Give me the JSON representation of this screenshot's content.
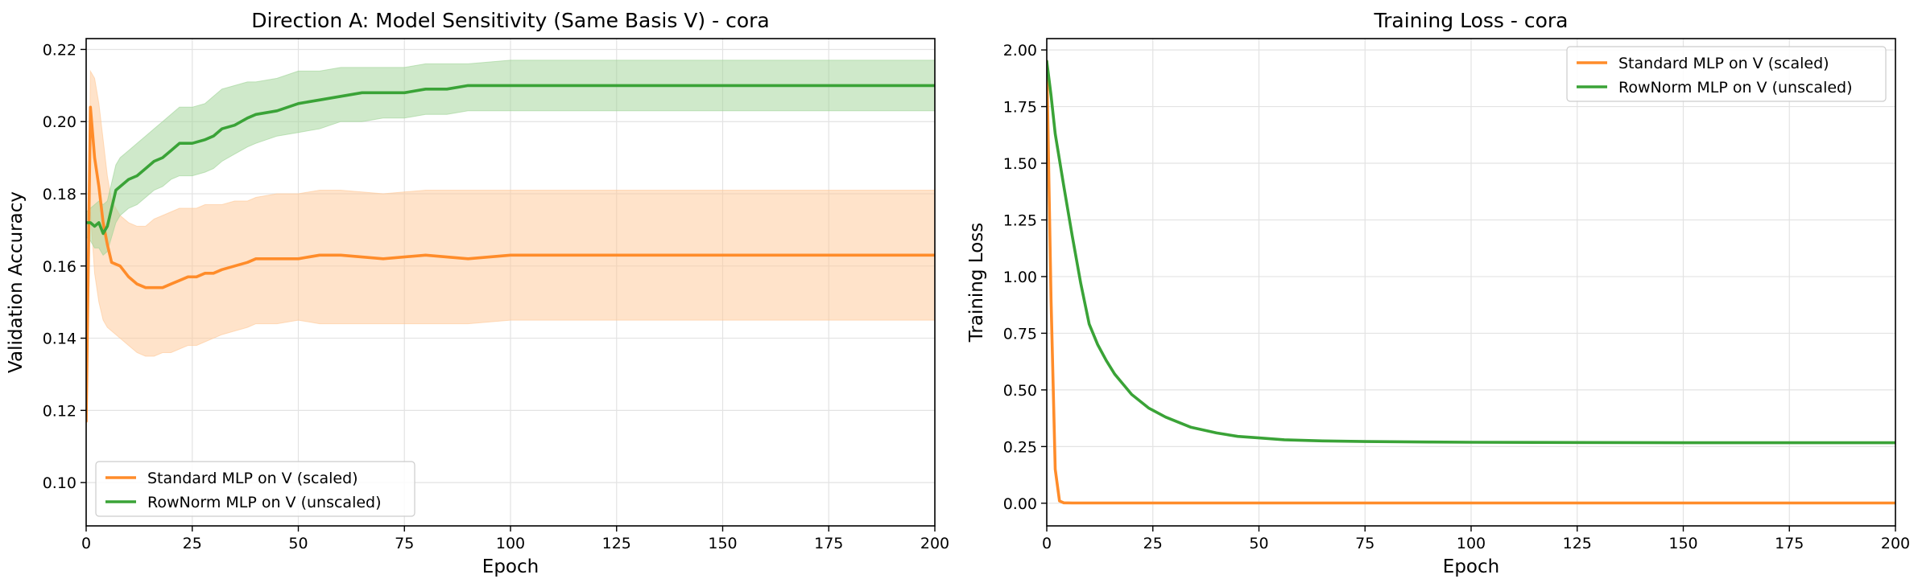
{
  "colors": {
    "standard": "#ff8c2a",
    "rownorm": "#3aa337",
    "standard_band": "#ffc896",
    "rownorm_band": "#9fd496"
  },
  "chart_data": [
    {
      "type": "line",
      "title": "Direction A: Model Sensitivity (Same Basis V) - cora",
      "xlabel": "Epoch",
      "ylabel": "Validation Accuracy",
      "xlim": [
        0,
        200
      ],
      "ylim": [
        0.088,
        0.223
      ],
      "xticks": [
        0,
        25,
        50,
        75,
        100,
        125,
        150,
        175,
        200
      ],
      "yticks": [
        0.1,
        0.12,
        0.14,
        0.16,
        0.18,
        0.2,
        0.22
      ],
      "ytick_labels": [
        "0.10",
        "0.12",
        "0.14",
        "0.16",
        "0.18",
        "0.20",
        "0.22"
      ],
      "grid": true,
      "legend_position": "lower-left",
      "series": [
        {
          "name": "Standard MLP on V (scaled)",
          "color_key": "standard",
          "x": [
            0,
            1,
            2,
            3,
            4,
            5,
            6,
            8,
            10,
            12,
            14,
            16,
            18,
            20,
            22,
            24,
            26,
            28,
            30,
            32,
            35,
            38,
            40,
            45,
            50,
            55,
            60,
            70,
            80,
            90,
            100,
            110,
            120,
            140,
            160,
            180,
            200
          ],
          "y": [
            0.117,
            0.204,
            0.19,
            0.182,
            0.172,
            0.166,
            0.161,
            0.16,
            0.157,
            0.155,
            0.154,
            0.154,
            0.154,
            0.155,
            0.156,
            0.157,
            0.157,
            0.158,
            0.158,
            0.159,
            0.16,
            0.161,
            0.162,
            0.162,
            0.162,
            0.163,
            0.163,
            0.162,
            0.163,
            0.162,
            0.163,
            0.163,
            0.163,
            0.163,
            0.163,
            0.163,
            0.163
          ],
          "band_upper": [
            0.12,
            0.214,
            0.212,
            0.205,
            0.195,
            0.185,
            0.178,
            0.174,
            0.172,
            0.171,
            0.171,
            0.173,
            0.174,
            0.175,
            0.176,
            0.176,
            0.176,
            0.177,
            0.177,
            0.177,
            0.178,
            0.178,
            0.179,
            0.18,
            0.18,
            0.181,
            0.181,
            0.18,
            0.181,
            0.181,
            0.181,
            0.181,
            0.181,
            0.181,
            0.181,
            0.181,
            0.181
          ],
          "band_lower": [
            0.112,
            0.175,
            0.158,
            0.15,
            0.145,
            0.143,
            0.142,
            0.14,
            0.138,
            0.136,
            0.135,
            0.135,
            0.136,
            0.136,
            0.137,
            0.138,
            0.138,
            0.139,
            0.14,
            0.141,
            0.142,
            0.143,
            0.144,
            0.144,
            0.145,
            0.144,
            0.144,
            0.144,
            0.144,
            0.144,
            0.145,
            0.145,
            0.145,
            0.145,
            0.145,
            0.145,
            0.145
          ]
        },
        {
          "name": "RowNorm MLP on V (unscaled)",
          "color_key": "rownorm",
          "x": [
            0,
            1,
            2,
            3,
            4,
            5,
            6,
            7,
            8,
            10,
            12,
            14,
            16,
            18,
            20,
            22,
            25,
            28,
            30,
            32,
            35,
            38,
            40,
            45,
            50,
            55,
            60,
            65,
            70,
            75,
            80,
            85,
            90,
            100,
            110,
            120,
            140,
            160,
            180,
            200
          ],
          "y": [
            0.172,
            0.172,
            0.171,
            0.172,
            0.169,
            0.171,
            0.176,
            0.181,
            0.182,
            0.184,
            0.185,
            0.187,
            0.189,
            0.19,
            0.192,
            0.194,
            0.194,
            0.195,
            0.196,
            0.198,
            0.199,
            0.201,
            0.202,
            0.203,
            0.205,
            0.206,
            0.207,
            0.208,
            0.208,
            0.208,
            0.209,
            0.209,
            0.21,
            0.21,
            0.21,
            0.21,
            0.21,
            0.21,
            0.21,
            0.21
          ],
          "band_upper": [
            0.175,
            0.176,
            0.177,
            0.178,
            0.177,
            0.178,
            0.183,
            0.188,
            0.19,
            0.192,
            0.194,
            0.196,
            0.198,
            0.2,
            0.202,
            0.204,
            0.204,
            0.205,
            0.207,
            0.209,
            0.21,
            0.211,
            0.211,
            0.212,
            0.214,
            0.214,
            0.215,
            0.215,
            0.215,
            0.215,
            0.216,
            0.216,
            0.216,
            0.217,
            0.217,
            0.217,
            0.217,
            0.217,
            0.217,
            0.217
          ],
          "band_lower": [
            0.168,
            0.167,
            0.165,
            0.165,
            0.163,
            0.164,
            0.168,
            0.172,
            0.174,
            0.176,
            0.177,
            0.179,
            0.181,
            0.182,
            0.184,
            0.185,
            0.185,
            0.186,
            0.187,
            0.189,
            0.191,
            0.193,
            0.194,
            0.196,
            0.197,
            0.198,
            0.2,
            0.2,
            0.201,
            0.201,
            0.202,
            0.202,
            0.203,
            0.203,
            0.203,
            0.203,
            0.203,
            0.203,
            0.203,
            0.203
          ]
        }
      ]
    },
    {
      "type": "line",
      "title": "Training Loss - cora",
      "xlabel": "Epoch",
      "ylabel": "Training Loss",
      "xlim": [
        0,
        200
      ],
      "ylim": [
        -0.1,
        2.05
      ],
      "xticks": [
        0,
        25,
        50,
        75,
        100,
        125,
        150,
        175,
        200
      ],
      "yticks": [
        0,
        0.25,
        0.5,
        0.75,
        1.0,
        1.25,
        1.5,
        1.75,
        2.0
      ],
      "ytick_labels": [
        "0.00",
        "0.25",
        "0.50",
        "0.75",
        "1.00",
        "1.25",
        "1.50",
        "1.75",
        "2.00"
      ],
      "grid": true,
      "legend_position": "upper-right",
      "series": [
        {
          "name": "Standard MLP on V (scaled)",
          "color_key": "standard",
          "x": [
            0,
            1,
            2,
            3,
            4,
            6,
            10,
            20,
            50,
            100,
            150,
            200
          ],
          "y": [
            1.95,
            0.9,
            0.15,
            0.01,
            0.002,
            0.001,
            0.001,
            0.001,
            0.001,
            0.001,
            0.001,
            0.001
          ]
        },
        {
          "name": "RowNorm MLP on V (unscaled)",
          "color_key": "rownorm",
          "x": [
            0,
            1,
            2,
            4,
            6,
            8,
            10,
            12,
            14,
            16,
            20,
            24,
            28,
            34,
            40,
            45,
            50,
            56,
            65,
            75,
            90,
            100,
            125,
            150,
            175,
            200
          ],
          "y": [
            1.95,
            1.8,
            1.63,
            1.4,
            1.18,
            0.97,
            0.79,
            0.7,
            0.63,
            0.57,
            0.48,
            0.42,
            0.38,
            0.335,
            0.31,
            0.295,
            0.288,
            0.28,
            0.275,
            0.272,
            0.27,
            0.269,
            0.268,
            0.267,
            0.267,
            0.267
          ]
        }
      ]
    }
  ]
}
